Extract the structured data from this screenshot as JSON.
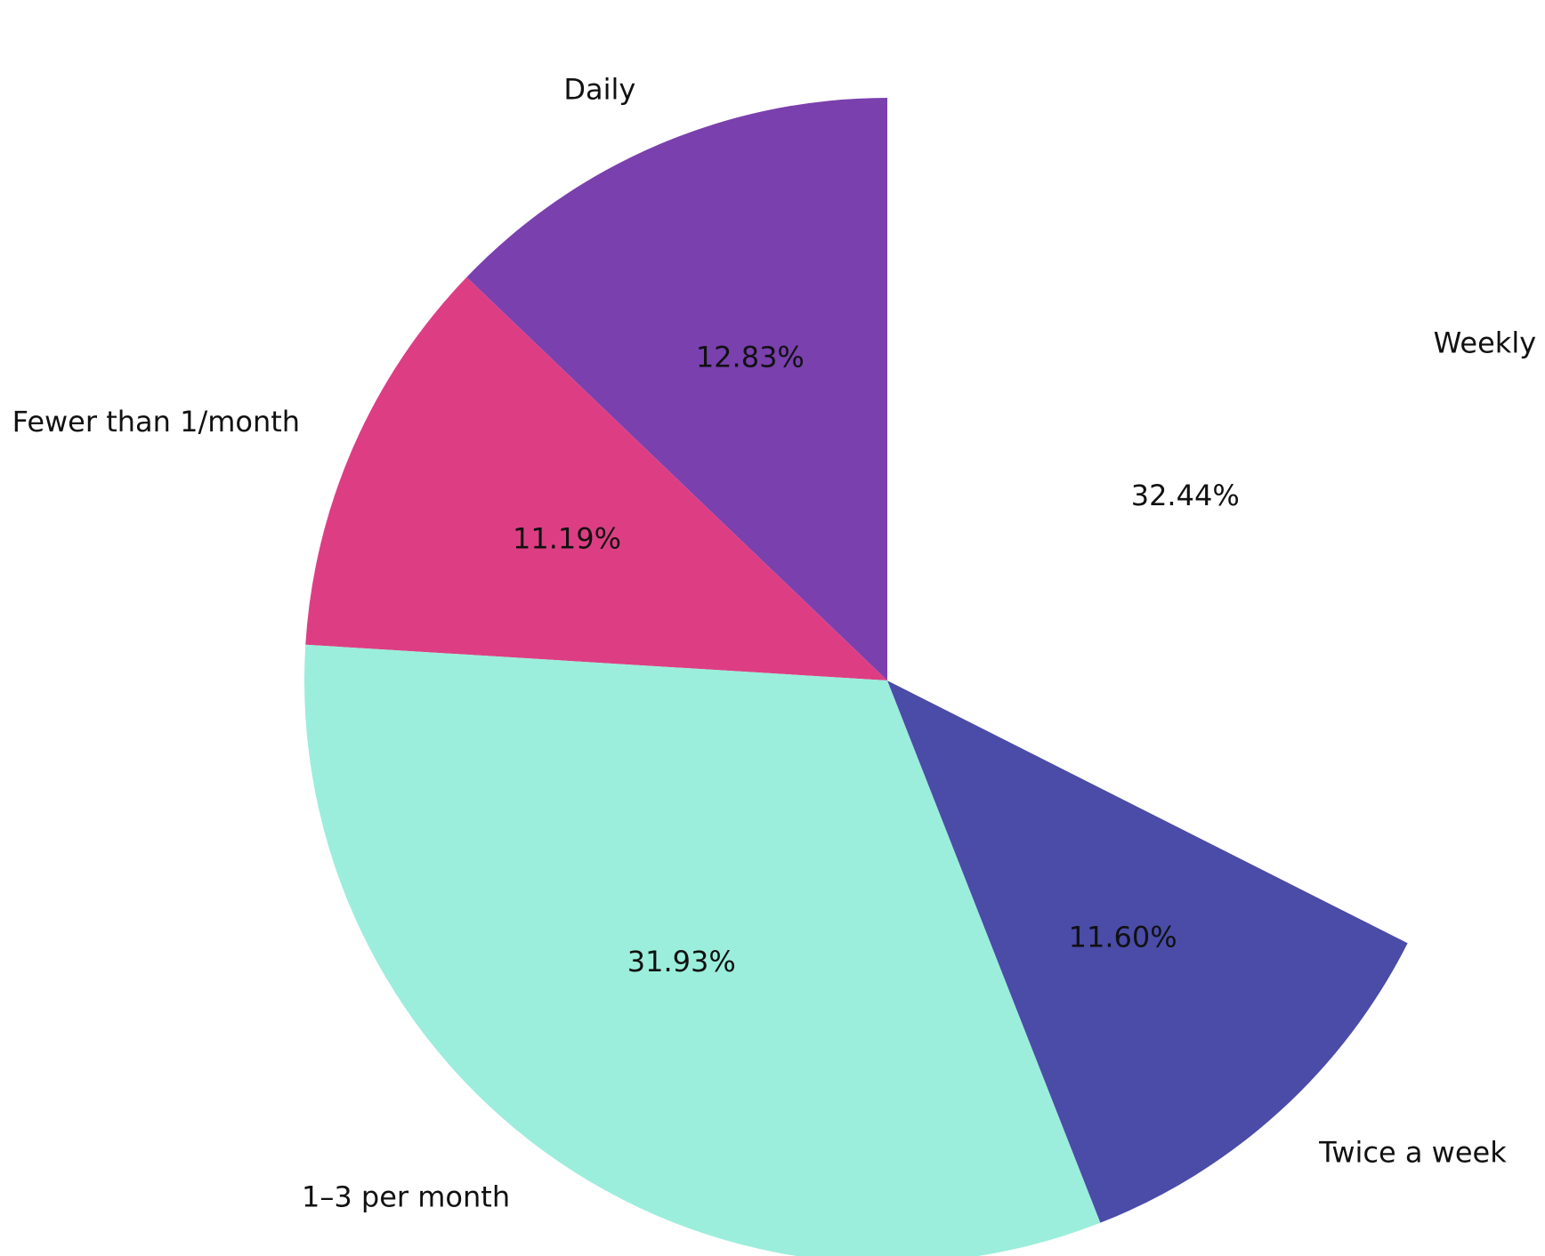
{
  "chart_data": {
    "type": "pie",
    "start_angle_deg": 90,
    "direction": "counterclockwise",
    "slices": [
      {
        "label": "Daily",
        "value": 12.83,
        "pct_label": "12.83%",
        "color": "#7a40ae"
      },
      {
        "label": "Fewer than 1/month",
        "value": 11.19,
        "pct_label": "11.19%",
        "color": "#dd3e83"
      },
      {
        "label": "1–3 per month",
        "value": 31.93,
        "pct_label": "31.93%",
        "color": "#9beedb"
      },
      {
        "label": "Twice a week",
        "value": 11.6,
        "pct_label": "11.60%",
        "color": "#4a4ca8"
      },
      {
        "label": "Weekly",
        "value": 32.44,
        "pct_label": "32.44%",
        "color": "#ffffff"
      }
    ]
  }
}
